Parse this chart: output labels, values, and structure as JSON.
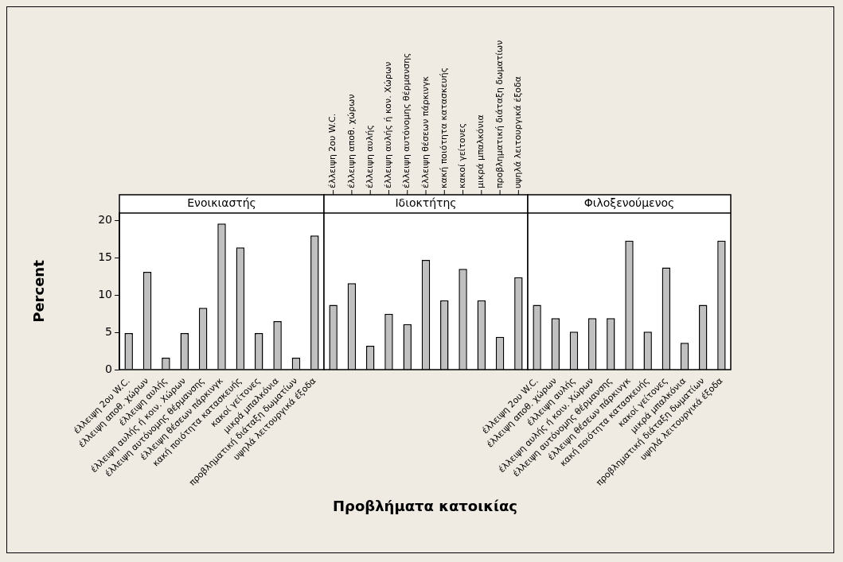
{
  "chart_data": [
    {
      "type": "bar",
      "title": "Ενοικιαστής",
      "ylabel": "Percent",
      "categories": [
        "έλλειψη 2ου W.C.",
        "έλλειψη αποθ. χώρων",
        "έλλειψη αυλής",
        "έλλειψη αυλής ή κοιν. Χώρων",
        "έλλειψη αυτόνομης θέρμανσης",
        "έλλειψη θέσεων πάρκινγκ",
        "κακή ποιότητα κατασκευής",
        "κακοί γείτονες",
        "μικρά μπαλκόνια",
        "προβληματική διάταξη δωματίων",
        "υψηλά λειτουργικά έξοδα"
      ],
      "values": [
        4.9,
        13.1,
        1.6,
        4.9,
        8.3,
        19.6,
        16.4,
        4.9,
        6.5,
        1.6,
        18.0
      ],
      "color": "#c0c0c0",
      "ylim": [
        0,
        21
      ],
      "yticks": [
        0,
        5,
        10,
        15,
        20
      ]
    },
    {
      "type": "bar",
      "title": "Ιδιοκτήτης",
      "xlabel": "Προβλήματα κατοικίας",
      "categories": [
        "έλλειψη 2ου W.C.",
        "έλλειψη αποθ. χώρων",
        "έλλειψη αυλής",
        "έλλειψη αυλής ή κον. Χώρων",
        "έλλειψη αυτόνομης θέρμανσης",
        "έλλειψη θέσεων πάρκινγκ",
        "κακή ποιότητα κατασκευής",
        "κακοί γείτονες",
        "μικρά μπαλκόνια",
        "προβληματική διάταξη δωματίων",
        "υψηλά λειτουργικά έξοδα"
      ],
      "values": [
        8.7,
        11.6,
        3.2,
        7.5,
        6.1,
        14.7,
        9.3,
        13.5,
        9.3,
        4.4,
        12.4
      ],
      "color": "#c0c0c0",
      "ylim": [
        0,
        21
      ],
      "yticks": [
        0,
        5,
        10,
        15,
        20
      ],
      "tick_labels": "x"
    },
    {
      "type": "bar",
      "title": "Φιλοξενούμενος",
      "categories": [
        "έλλειψη 2ου W.C.",
        "έλλειψη αποθ. χώρων",
        "έλλειψη αυλής",
        "έλλειψη αυλής ή κοιν. Χώρων",
        "έλλειψη αυτόνομης θέρμανσης",
        "έλλειψη θέσεων πάρκινγκ",
        "κακή ποιότητα κατασκευής",
        "κακοί γείτονες",
        "μικρά μπαλκόνια",
        "προβληματική διάταξη δωματίων",
        "υψηλά λειτουργικά έξοδα"
      ],
      "values": [
        8.7,
        6.9,
        5.1,
        6.9,
        6.9,
        17.3,
        5.1,
        13.7,
        3.6,
        8.7,
        17.3
      ],
      "color": "#c0c0c0",
      "ylim": [
        0,
        21
      ],
      "yticks": [
        0,
        5,
        10,
        15,
        20
      ],
      "tick_labels": "x"
    }
  ]
}
